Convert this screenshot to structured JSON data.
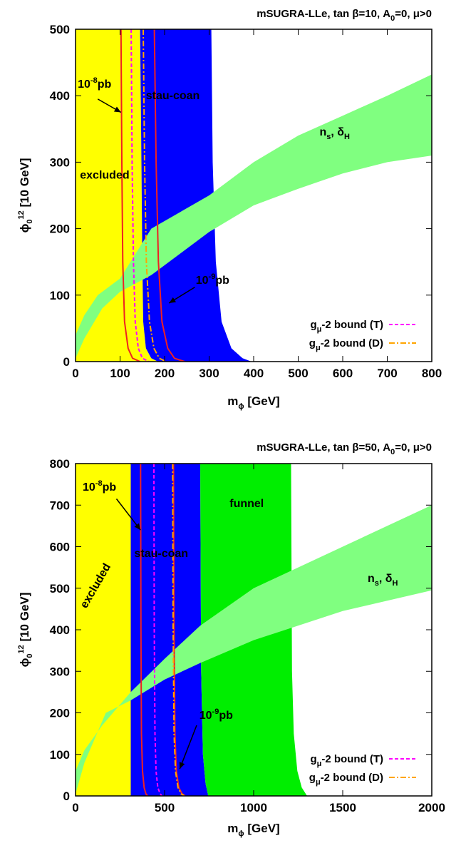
{
  "colors": {
    "excluded": "#ffff00",
    "stau_coan": "#0000ff",
    "funnel": "#00ee00",
    "ns_band": "#80ff80",
    "xsec_line": "#ee2222",
    "gmu_T": "#ff00ff",
    "gmu_D": "#ffa500"
  },
  "chart_data": [
    {
      "type": "area",
      "title": {
        "main": "mSUGRA-LLe, tan β=10, A",
        "sub": "0",
        "rest": "=0, μ>0"
      },
      "xlabel": {
        "base": "m",
        "sub": "ϕ",
        "rest": " [GeV]"
      },
      "ylabel": {
        "base": "ϕ",
        "sub": "0",
        "mid": " [10",
        "sup": "12",
        "rest": " GeV]"
      },
      "xlim": [
        0,
        800
      ],
      "ylim": [
        0,
        500
      ],
      "xticks": [
        0,
        100,
        200,
        300,
        400,
        500,
        600,
        700,
        800
      ],
      "yticks": [
        0,
        100,
        200,
        300,
        400,
        500
      ],
      "regions": [
        {
          "name": "excluded",
          "color_key": "excluded",
          "points": [
            [
              0,
              0
            ],
            [
              0,
              500
            ],
            [
              145,
              500
            ],
            [
              148,
              300
            ],
            [
              150,
              150
            ],
            [
              152,
              60
            ],
            [
              158,
              20
            ],
            [
              170,
              5
            ],
            [
              185,
              0
            ]
          ]
        },
        {
          "name": "stau-coan",
          "color_key": "stau_coan",
          "points": [
            [
              185,
              0
            ],
            [
              170,
              5
            ],
            [
              158,
              20
            ],
            [
              152,
              60
            ],
            [
              150,
              150
            ],
            [
              148,
              300
            ],
            [
              145,
              500
            ],
            [
              305,
              500
            ],
            [
              308,
              300
            ],
            [
              315,
              150
            ],
            [
              328,
              60
            ],
            [
              350,
              20
            ],
            [
              375,
              5
            ],
            [
              395,
              0
            ]
          ]
        }
      ],
      "band": {
        "name": "ns-deltaH",
        "color_key": "ns_band",
        "upper": [
          [
            0,
            40
          ],
          [
            20,
            70
          ],
          [
            50,
            100
          ],
          [
            100,
            125
          ],
          [
            170,
            200
          ],
          [
            300,
            250
          ],
          [
            400,
            300
          ],
          [
            500,
            340
          ],
          [
            600,
            370
          ],
          [
            700,
            400
          ],
          [
            800,
            432
          ]
        ],
        "lower": [
          [
            0,
            5
          ],
          [
            20,
            35
          ],
          [
            60,
            80
          ],
          [
            100,
            105
          ],
          [
            170,
            130
          ],
          [
            300,
            195
          ],
          [
            400,
            235
          ],
          [
            500,
            260
          ],
          [
            600,
            283
          ],
          [
            700,
            300
          ],
          [
            800,
            310
          ]
        ]
      },
      "lines": [
        {
          "name": "xsec-1e-8",
          "color_key": "xsec_line",
          "style": "solid",
          "points": [
            [
              102,
              500
            ],
            [
              104,
              300
            ],
            [
              106,
              150
            ],
            [
              110,
              60
            ],
            [
              118,
              20
            ],
            [
              128,
              5
            ],
            [
              145,
              0
            ]
          ]
        },
        {
          "name": "xsec-1e-9",
          "color_key": "xsec_line",
          "style": "solid",
          "points": [
            [
              177,
              500
            ],
            [
              181,
              300
            ],
            [
              186,
              150
            ],
            [
              194,
              60
            ],
            [
              207,
              20
            ],
            [
              222,
              5
            ],
            [
              245,
              0
            ]
          ]
        },
        {
          "name": "gmu-T",
          "color_key": "gmu_T",
          "style": "dashed",
          "points": [
            [
              125,
              500
            ],
            [
              127,
              300
            ],
            [
              130,
              150
            ],
            [
              134,
              60
            ],
            [
              141,
              20
            ],
            [
              150,
              5
            ],
            [
              165,
              0
            ]
          ]
        },
        {
          "name": "gmu-D",
          "color_key": "gmu_D",
          "style": "dashdot",
          "points": [
            [
              152,
              500
            ],
            [
              155,
              300
            ],
            [
              159,
              150
            ],
            [
              166,
              60
            ],
            [
              176,
              20
            ],
            [
              188,
              5
            ],
            [
              203,
              0
            ]
          ]
        }
      ],
      "annotations": [
        {
          "id": "ann-excluded",
          "base": "excluded",
          "x": 10,
          "y": 275,
          "rotate": 0
        },
        {
          "id": "ann-stau",
          "base": "stau-coan",
          "x": 158,
          "y": 395,
          "rotate": 0
        },
        {
          "id": "ann-xsec-8",
          "base": "10",
          "sup": "-8",
          "rest": "pb",
          "x": 5,
          "y": 412,
          "rotate": 0,
          "arrow": {
            "from": [
              50,
              395
            ],
            "to": [
              102,
              375
            ]
          }
        },
        {
          "id": "ann-xsec-9",
          "base": "10",
          "sup": "-9",
          "rest": "pb",
          "x": 270,
          "y": 117,
          "rotate": 0,
          "arrow": {
            "from": [
              268,
              112
            ],
            "to": [
              210,
              88
            ]
          }
        },
        {
          "id": "ann-ns",
          "base": "n",
          "sub": "s",
          "mid": ", δ",
          "sub2": "H",
          "x": 548,
          "y": 340,
          "rotate": 0
        }
      ],
      "legend": {
        "position": "bottom-right",
        "entries": [
          {
            "base": "g",
            "sub": "μ",
            "rest": "-2 bound (T)",
            "color_key": "gmu_T",
            "style": "dashed"
          },
          {
            "base": "g",
            "sub": "μ",
            "rest": "-2 bound (D)",
            "color_key": "gmu_D",
            "style": "dashdot"
          }
        ]
      }
    },
    {
      "type": "area",
      "title": {
        "main": "mSUGRA-LLe, tan β=50, A",
        "sub": "0",
        "rest": "=0, μ>0"
      },
      "xlabel": {
        "base": "m",
        "sub": "ϕ",
        "rest": " [GeV]"
      },
      "ylabel": {
        "base": "ϕ",
        "sub": "0",
        "mid": " [10",
        "sup": "12",
        "rest": " GeV]"
      },
      "xlim": [
        0,
        2000
      ],
      "ylim": [
        0,
        800
      ],
      "xticks": [
        0,
        500,
        1000,
        1500,
        2000
      ],
      "yticks": [
        0,
        100,
        200,
        300,
        400,
        500,
        600,
        700,
        800
      ],
      "regions": [
        {
          "name": "excluded",
          "color_key": "excluded",
          "points": [
            [
              0,
              0
            ],
            [
              0,
              800
            ],
            [
              310,
              800
            ],
            [
              310,
              0
            ]
          ]
        },
        {
          "name": "stau-coan",
          "color_key": "stau_coan",
          "points": [
            [
              310,
              0
            ],
            [
              310,
              800
            ],
            [
              700,
              800
            ],
            [
              705,
              300
            ],
            [
              715,
              100
            ],
            [
              730,
              30
            ],
            [
              745,
              0
            ]
          ]
        },
        {
          "name": "funnel",
          "color_key": "funnel",
          "points": [
            [
              745,
              0
            ],
            [
              730,
              30
            ],
            [
              715,
              100
            ],
            [
              705,
              300
            ],
            [
              700,
              800
            ],
            [
              1210,
              800
            ],
            [
              1215,
              300
            ],
            [
              1225,
              150
            ],
            [
              1245,
              60
            ],
            [
              1270,
              20
            ],
            [
              1300,
              0
            ]
          ]
        }
      ],
      "band": {
        "name": "ns-deltaH",
        "color_key": "ns_band",
        "upper": [
          [
            0,
            60
          ],
          [
            50,
            110
          ],
          [
            150,
            170
          ],
          [
            310,
            250
          ],
          [
            500,
            330
          ],
          [
            700,
            410
          ],
          [
            1000,
            500
          ],
          [
            1500,
            600
          ],
          [
            2000,
            700
          ]
        ],
        "lower": [
          [
            0,
            5
          ],
          [
            50,
            80
          ],
          [
            170,
            200
          ],
          [
            310,
            230
          ],
          [
            500,
            280
          ],
          [
            700,
            320
          ],
          [
            1000,
            375
          ],
          [
            1500,
            445
          ],
          [
            2000,
            495
          ]
        ]
      },
      "lines": [
        {
          "name": "xsec-1e-8",
          "color_key": "xsec_line",
          "style": "solid",
          "points": [
            [
              365,
              800
            ],
            [
              367,
              400
            ],
            [
              370,
              150
            ],
            [
              376,
              60
            ],
            [
              385,
              20
            ],
            [
              395,
              5
            ],
            [
              405,
              0
            ]
          ]
        },
        {
          "name": "xsec-1e-9",
          "color_key": "xsec_line",
          "style": "solid",
          "points": [
            [
              550,
              800
            ],
            [
              553,
              400
            ],
            [
              558,
              150
            ],
            [
              566,
              60
            ],
            [
              580,
              20
            ],
            [
              598,
              5
            ],
            [
              615,
              0
            ]
          ]
        },
        {
          "name": "gmu-T",
          "color_key": "gmu_T",
          "style": "dashed",
          "points": [
            [
              440,
              800
            ],
            [
              442,
              400
            ],
            [
              446,
              150
            ],
            [
              452,
              60
            ],
            [
              462,
              20
            ],
            [
              475,
              5
            ],
            [
              485,
              0
            ]
          ]
        },
        {
          "name": "gmu-D",
          "color_key": "gmu_D",
          "style": "dashdot",
          "points": [
            [
              545,
              800
            ],
            [
              548,
              400
            ],
            [
              553,
              150
            ],
            [
              561,
              60
            ],
            [
              575,
              20
            ],
            [
              593,
              5
            ],
            [
              610,
              0
            ]
          ]
        }
      ],
      "annotations": [
        {
          "id": "ann-excluded",
          "base": "excluded",
          "x": 60,
          "y": 450,
          "rotate": -60
        },
        {
          "id": "ann-stau",
          "base": "stau-coan",
          "x": 330,
          "y": 575,
          "rotate": 0
        },
        {
          "id": "ann-funnel",
          "base": "funnel",
          "x": 865,
          "y": 695,
          "rotate": 0
        },
        {
          "id": "ann-xsec-8",
          "base": "10",
          "sup": "-8",
          "rest": "pb",
          "x": 40,
          "y": 735,
          "rotate": 0,
          "arrow": {
            "from": [
              230,
              715
            ],
            "to": [
              365,
              640
            ]
          }
        },
        {
          "id": "ann-xsec-9",
          "base": "10",
          "sup": "-9",
          "rest": "pb",
          "x": 695,
          "y": 185,
          "rotate": 0,
          "arrow": {
            "from": [
              680,
              170
            ],
            "to": [
              585,
              65
            ]
          }
        },
        {
          "id": "ann-ns",
          "base": "n",
          "sub": "s",
          "mid": ", δ",
          "sub2": "H",
          "x": 1640,
          "y": 515,
          "rotate": 0
        }
      ],
      "legend": {
        "position": "bottom-right",
        "entries": [
          {
            "base": "g",
            "sub": "μ",
            "rest": "-2 bound (T)",
            "color_key": "gmu_T",
            "style": "dashed"
          },
          {
            "base": "g",
            "sub": "μ",
            "rest": "-2 bound (D)",
            "color_key": "gmu_D",
            "style": "dashdot"
          }
        ]
      }
    }
  ]
}
